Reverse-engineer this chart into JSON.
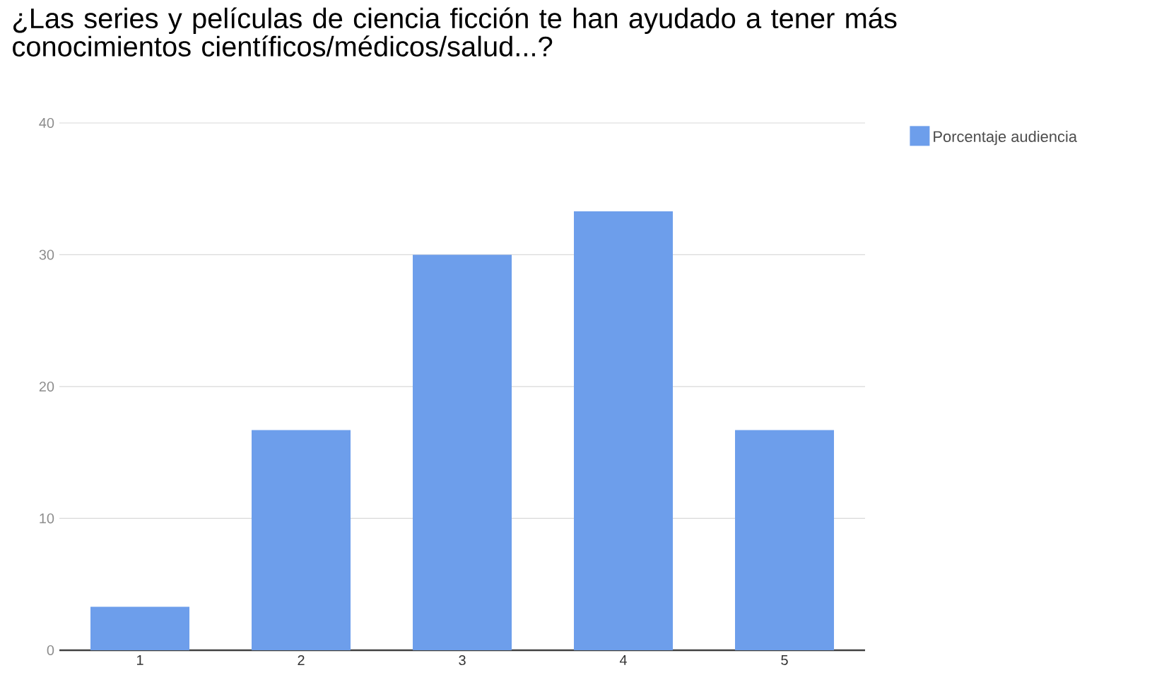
{
  "chart_data": {
    "type": "bar",
    "title": "¿Las series y películas de ciencia ficción te han ayudado a tener más conocimientos científicos/médicos/salud...?",
    "categories": [
      "1",
      "2",
      "3",
      "4",
      "5"
    ],
    "series": [
      {
        "name": "Porcentaje audiencia",
        "color": "#6d9eeb",
        "values": [
          3.3,
          16.7,
          30,
          33.3,
          16.7
        ]
      }
    ],
    "ylim": [
      0,
      40
    ],
    "yticks": [
      0,
      10,
      20,
      30,
      40
    ],
    "grid": "y",
    "legend": "top right"
  }
}
